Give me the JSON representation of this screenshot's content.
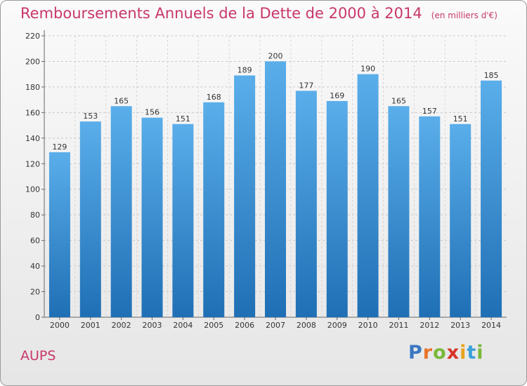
{
  "header": {
    "title": "Remboursements Annuels de la Dette de 2000 à 2014",
    "subtitle": "(en milliers d'€)"
  },
  "footer": {
    "place": "AUPS",
    "logo": "Proxiti"
  },
  "colors": {
    "title": "#c8376b",
    "bar_top": "#5aaeea",
    "bar_bottom": "#1f6fb5",
    "grid": "#cccccc"
  },
  "chart_data": {
    "type": "bar",
    "title": "Remboursements Annuels de la Dette de 2000 à 2014",
    "subtitle": "(en milliers d'€)",
    "xlabel": "",
    "ylabel": "",
    "categories": [
      "2000",
      "2001",
      "2002",
      "2003",
      "2004",
      "2005",
      "2006",
      "2007",
      "2008",
      "2009",
      "2010",
      "2011",
      "2012",
      "2013",
      "2014"
    ],
    "values": [
      129,
      153,
      165,
      156,
      151,
      168,
      189,
      200,
      177,
      169,
      190,
      165,
      157,
      151,
      185
    ],
    "ylim": [
      0,
      220
    ],
    "yticks": [
      0,
      20,
      40,
      60,
      80,
      100,
      120,
      140,
      160,
      180,
      200,
      220
    ],
    "grid": "horizontal dashed",
    "data_labels": true
  }
}
